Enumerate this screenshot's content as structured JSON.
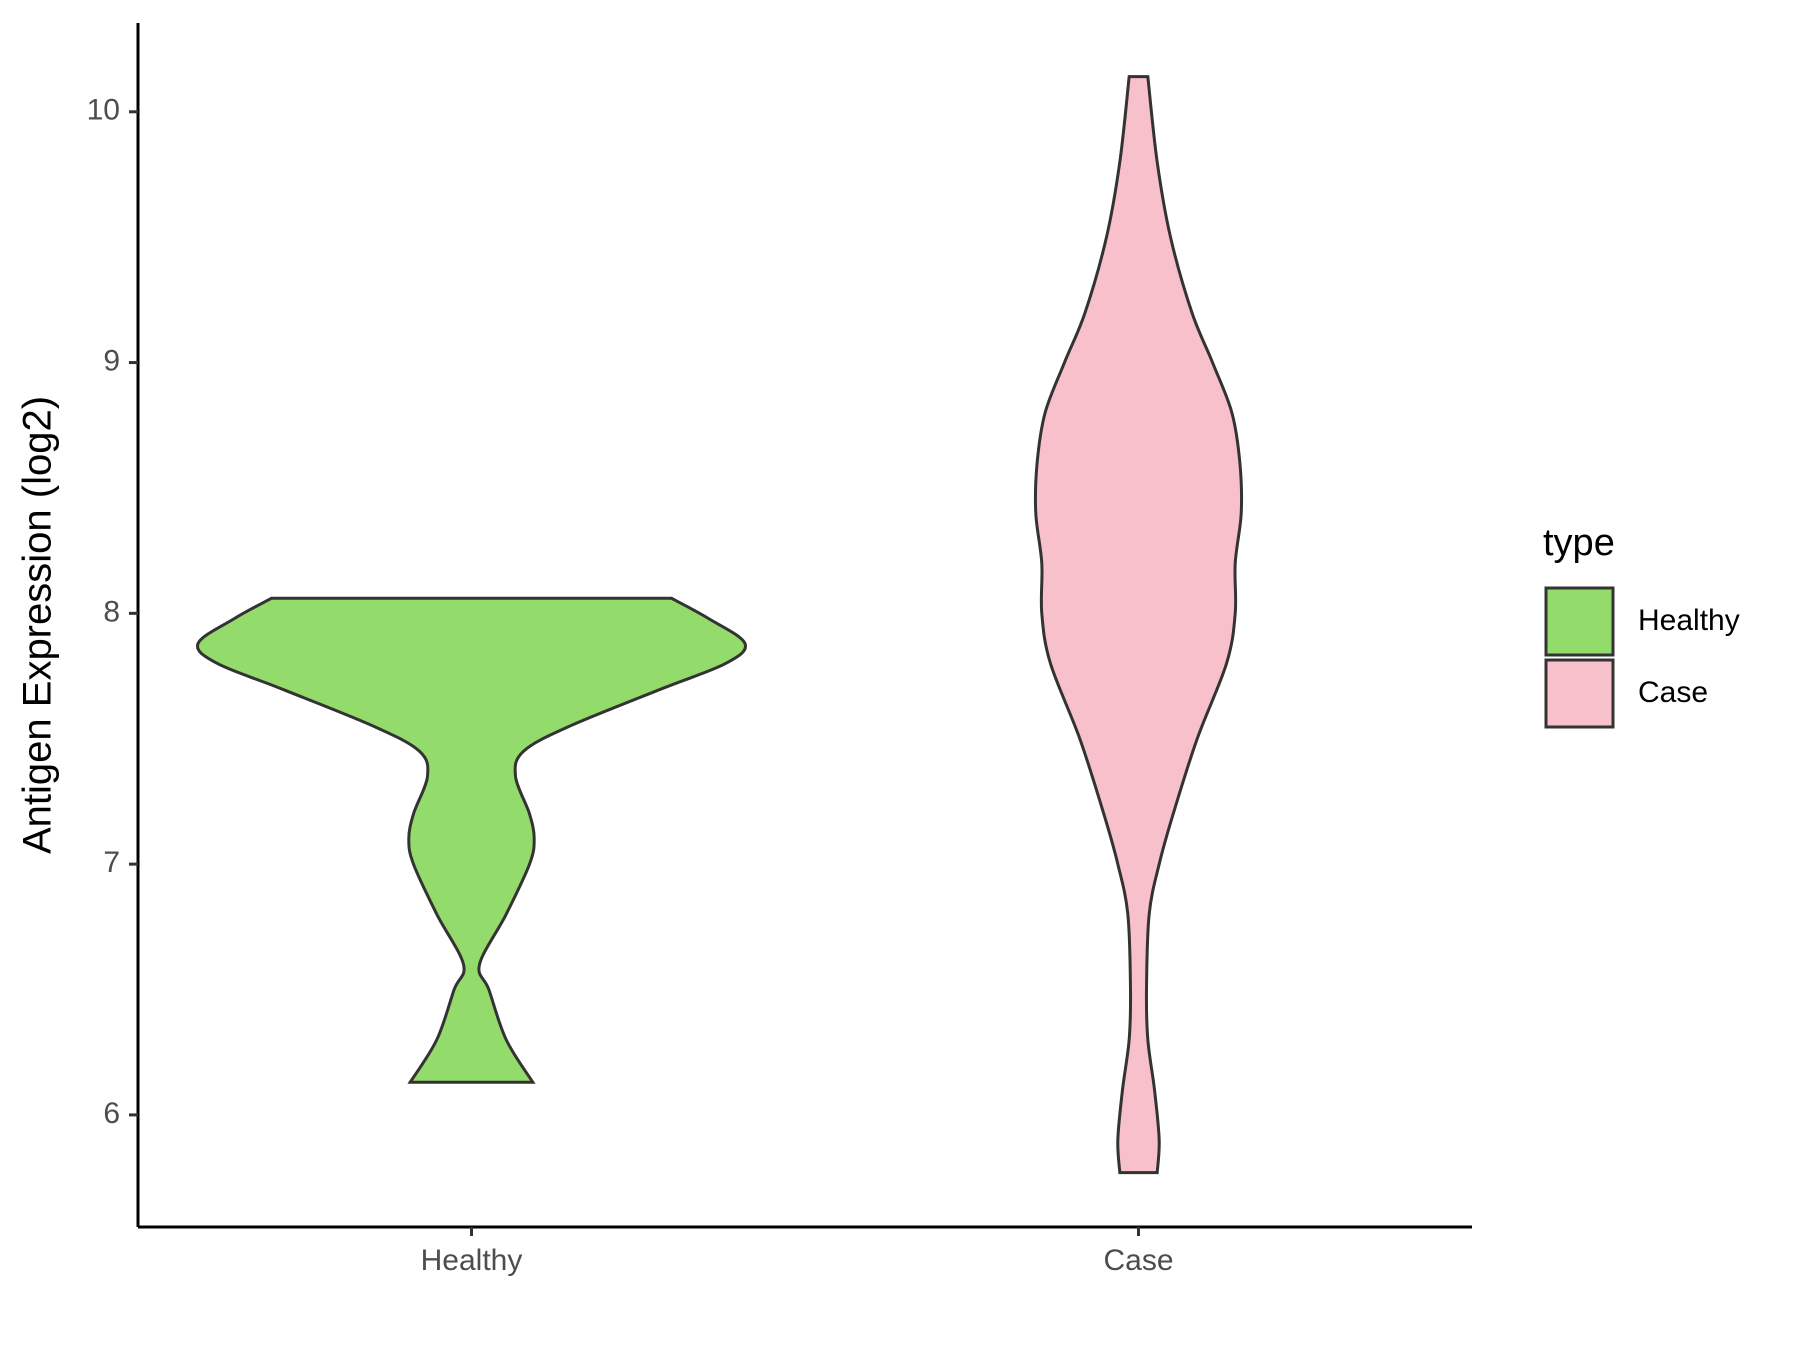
{
  "chart_data": {
    "type": "violin",
    "y_label": "Antigen Expression (log2)",
    "legend_title": "type",
    "categories": [
      "Healthy",
      "Case"
    ],
    "series": [
      {
        "name": "Healthy",
        "color": "#93dc6b",
        "y": [
          6.13,
          6.3,
          6.5,
          6.6,
          6.8,
          7.0,
          7.1,
          7.2,
          7.35,
          7.45,
          7.55,
          7.7,
          7.8,
          7.88,
          7.98,
          8.06
        ],
        "width": [
          0.092,
          0.052,
          0.026,
          0.012,
          0.052,
          0.087,
          0.094,
          0.087,
          0.066,
          0.078,
          0.147,
          0.286,
          0.381,
          0.41,
          0.355,
          0.3
        ]
      },
      {
        "name": "Case",
        "color": "#f7c0cb",
        "y": [
          5.77,
          5.9,
          6.1,
          6.3,
          6.5,
          6.8,
          7.0,
          7.2,
          7.5,
          7.8,
          8.0,
          8.2,
          8.4,
          8.6,
          8.8,
          9.0,
          9.2,
          9.5,
          9.8,
          10.14
        ],
        "width": [
          0.028,
          0.031,
          0.024,
          0.014,
          0.012,
          0.016,
          0.031,
          0.052,
          0.088,
          0.132,
          0.145,
          0.145,
          0.154,
          0.152,
          0.14,
          0.111,
          0.08,
          0.048,
          0.028,
          0.014
        ]
      }
    ],
    "ylim": [
      5.553,
      10.354
    ],
    "yticks": [
      6,
      7,
      8,
      9,
      10
    ]
  }
}
